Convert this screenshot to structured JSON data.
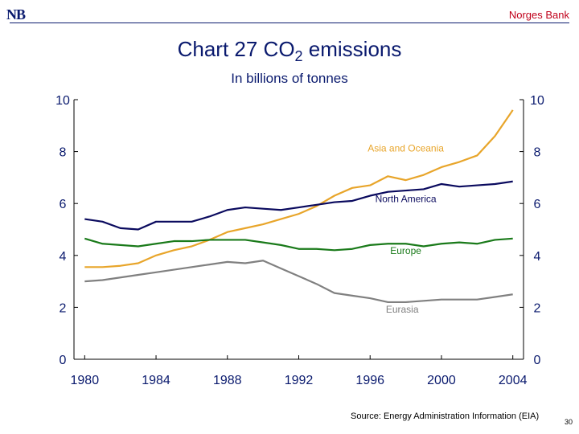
{
  "header": {
    "logo": "NB",
    "bank": "Norges Bank"
  },
  "footer": {
    "source": "Source: Energy Administration Information (EIA)",
    "page": "30"
  },
  "chart_data": {
    "type": "line",
    "title": "Chart 27 CO",
    "title_sub": "2",
    "title_tail": " emissions",
    "subtitle": "In billions of tonnes",
    "x": [
      1980,
      1981,
      1982,
      1983,
      1984,
      1985,
      1986,
      1987,
      1988,
      1989,
      1990,
      1991,
      1992,
      1993,
      1994,
      1995,
      1996,
      1997,
      1998,
      1999,
      2000,
      2001,
      2002,
      2003,
      2004
    ],
    "xticks": [
      "1980",
      "1984",
      "1988",
      "1992",
      "1996",
      "2000",
      "2004"
    ],
    "yticks": [
      "0",
      "2",
      "4",
      "6",
      "8",
      "10"
    ],
    "ylim": [
      0,
      10
    ],
    "xlim": [
      1979.4,
      2004.6
    ],
    "grid": false,
    "series": [
      {
        "name": "Asia and Oceania",
        "color": "#e8a52a",
        "values": [
          3.55,
          3.55,
          3.6,
          3.7,
          4.0,
          4.2,
          4.35,
          4.6,
          4.9,
          5.05,
          5.2,
          5.4,
          5.6,
          5.9,
          6.3,
          6.6,
          6.7,
          7.05,
          6.9,
          7.1,
          7.4,
          7.6,
          7.85,
          8.6,
          9.6
        ],
        "label_at": [
          1998,
          8.0
        ]
      },
      {
        "name": "North America",
        "color": "#0a0a5e",
        "values": [
          5.4,
          5.3,
          5.05,
          5.0,
          5.3,
          5.3,
          5.3,
          5.5,
          5.75,
          5.85,
          5.8,
          5.75,
          5.85,
          5.95,
          6.05,
          6.1,
          6.3,
          6.45,
          6.5,
          6.55,
          6.75,
          6.65,
          6.7,
          6.75,
          6.85
        ],
        "label_at": [
          1998,
          6.05
        ]
      },
      {
        "name": "Europe",
        "color": "#1a7a1a",
        "values": [
          4.65,
          4.45,
          4.4,
          4.35,
          4.45,
          4.55,
          4.55,
          4.6,
          4.6,
          4.6,
          4.5,
          4.4,
          4.25,
          4.25,
          4.2,
          4.25,
          4.4,
          4.45,
          4.45,
          4.35,
          4.45,
          4.5,
          4.45,
          4.6,
          4.65
        ],
        "label_at": [
          1998,
          4.05
        ]
      },
      {
        "name": "Eurasia",
        "color": "#808080",
        "values": [
          3.0,
          3.05,
          3.15,
          3.25,
          3.35,
          3.45,
          3.55,
          3.65,
          3.75,
          3.7,
          3.8,
          3.5,
          3.2,
          2.9,
          2.55,
          2.45,
          2.35,
          2.2,
          2.2,
          2.25,
          2.3,
          2.3,
          2.3,
          2.4,
          2.5
        ],
        "label_at": [
          1997.8,
          1.8
        ]
      }
    ]
  }
}
